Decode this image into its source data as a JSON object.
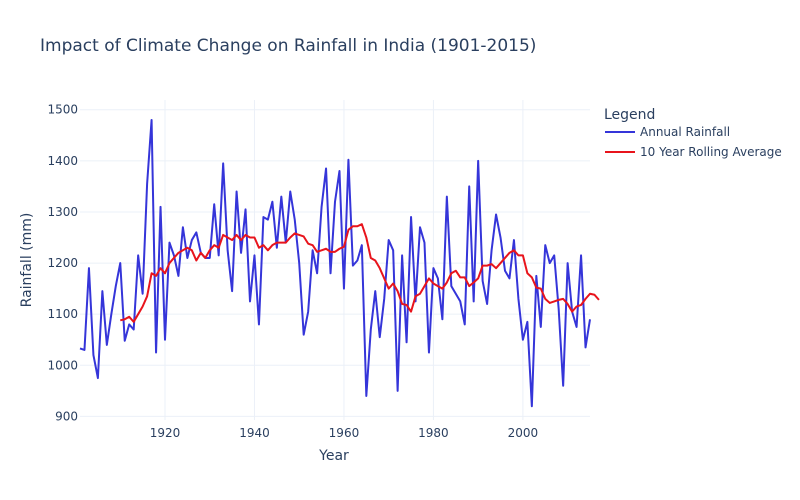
{
  "chart_data": {
    "type": "line",
    "title": "Impact of Climate Change on Rainfall in India (1901-2015)",
    "xlabel": "Year",
    "ylabel": "Rainfall (mm)",
    "xlim": [
      1901,
      2015
    ],
    "ylim": [
      893,
      1519
    ],
    "x_ticks": [
      1920,
      1940,
      1960,
      1980,
      2000
    ],
    "y_ticks": [
      900,
      1000,
      1100,
      1200,
      1300,
      1400,
      1500
    ],
    "grid": true,
    "legend": {
      "title": "Legend",
      "position": "right"
    },
    "series": [
      {
        "name": "Annual Rainfall",
        "color": "#3535d9",
        "x_start": 1901,
        "values": [
          1033,
          1030,
          1190,
          1020,
          975,
          1145,
          1040,
          1100,
          1155,
          1200,
          1048,
          1080,
          1070,
          1215,
          1140,
          1355,
          1480,
          1025,
          1310,
          1050,
          1240,
          1215,
          1175,
          1270,
          1210,
          1245,
          1260,
          1220,
          1210,
          1210,
          1315,
          1215,
          1395,
          1225,
          1145,
          1340,
          1220,
          1305,
          1125,
          1215,
          1080,
          1290,
          1285,
          1320,
          1230,
          1330,
          1240,
          1340,
          1285,
          1200,
          1060,
          1105,
          1225,
          1180,
          1310,
          1385,
          1180,
          1320,
          1380,
          1150,
          1402,
          1195,
          1205,
          1235,
          940,
          1070,
          1145,
          1055,
          1130,
          1245,
          1225,
          950,
          1215,
          1045,
          1290,
          1125,
          1270,
          1240,
          1025,
          1190,
          1170,
          1090,
          1330,
          1155,
          1140,
          1125,
          1080,
          1350,
          1125,
          1400,
          1165,
          1120,
          1225,
          1295,
          1250,
          1185,
          1170,
          1245,
          1130,
          1050,
          1085,
          920,
          1175,
          1075,
          1235,
          1200,
          1215,
          1110,
          960,
          1200,
          1105,
          1075,
          1215,
          1035,
          1090
        ]
      },
      {
        "name": "10 Year Rolling Average",
        "color": "#e8141c",
        "x_start": 1910,
        "values": [
          1088,
          1090,
          1095,
          1085,
          1100,
          1115,
          1135,
          1180,
          1175,
          1190,
          1180,
          1200,
          1210,
          1220,
          1225,
          1230,
          1225,
          1205,
          1220,
          1210,
          1225,
          1235,
          1230,
          1255,
          1250,
          1245,
          1255,
          1245,
          1255,
          1250,
          1250,
          1230,
          1235,
          1225,
          1235,
          1240,
          1240,
          1240,
          1250,
          1258,
          1255,
          1252,
          1238,
          1235,
          1222,
          1225,
          1228,
          1222,
          1222,
          1228,
          1232,
          1265,
          1272,
          1272,
          1276,
          1250,
          1210,
          1205,
          1190,
          1170,
          1150,
          1160,
          1145,
          1120,
          1118,
          1105,
          1135,
          1140,
          1155,
          1170,
          1160,
          1155,
          1150,
          1162,
          1180,
          1185,
          1172,
          1172,
          1155,
          1162,
          1170,
          1195,
          1195,
          1198,
          1190,
          1200,
          1210,
          1220,
          1225,
          1215,
          1215,
          1180,
          1172,
          1152,
          1150,
          1130,
          1122,
          1125,
          1128,
          1130,
          1120,
          1105,
          1115,
          1118,
          1130,
          1140,
          1138,
          1128
        ]
      }
    ]
  }
}
